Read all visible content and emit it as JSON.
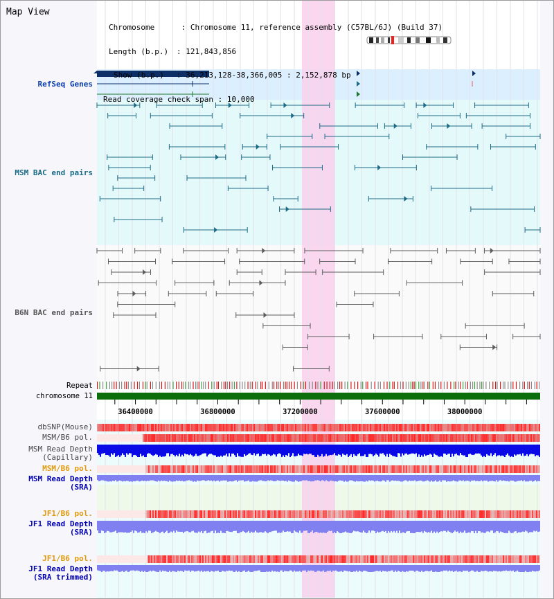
{
  "app": {
    "title": "Map View"
  },
  "info": {
    "chromosome_label": "Chromosome",
    "chromosome_value": "Chromosome 11, reference assembly (C57BL/6J) (Build 37)",
    "length_label": "Length (b.p.)",
    "length_value": "121,843,856",
    "show_label": "Show (b.p.)",
    "show_value": "36,213,128-38,366,005 : 2,152,878 bp",
    "coverage_label": "Read coverage check span",
    "coverage_value": "10,000"
  },
  "tracks": {
    "refseq": "RefSeq Genes",
    "msm_bac": "MSM BAC end pairs",
    "b6n_bac": "B6N BAC end pairs",
    "repeat": "Repeat",
    "chromosome": "chromosome 11",
    "dbsnp": "dbSNP(Mouse)",
    "msm_b6_pol": "MSM/B6 pol.",
    "msm_depth_cap_1": "MSM Read Depth",
    "msm_depth_cap_2": "(Capillary)",
    "msm_b6_pol_sra": "MSM/B6 pol.",
    "msm_depth_sra_1": "MSM Read Depth",
    "msm_depth_sra_2": "(SRA)",
    "jf1_b6_pol": "JF1/B6 pol.",
    "jf1_depth_1": "JF1 Read Depth",
    "jf1_depth_2": "(SRA)",
    "jf1_b6_pol_trim": "JF1/B6 pol.",
    "jf1_trim_1": "JF1 Read Depth",
    "jf1_trim_2": "(SRA trimmed)"
  },
  "axis": {
    "ticks": [
      "36400000",
      "36800000",
      "37200000",
      "37600000",
      "38000000"
    ]
  },
  "colors": {
    "refseq_bg": "#dcefff",
    "bac_bg": "#e4fafa",
    "highlight": "#f9d0ec",
    "msm_line": "#1d6a86",
    "b6n_line": "#5c5c5c",
    "chromosome_bar": "#0b6e0b",
    "depth_dark": "#0a0ae6",
    "depth_light": "#8080f0",
    "polymorph": "#e04040",
    "label_blue": "#0d3fa6",
    "label_teal": "#1b6b86",
    "label_gray": "#555555",
    "label_orange": "#e09a10",
    "label_navy": "#0000b0"
  }
}
